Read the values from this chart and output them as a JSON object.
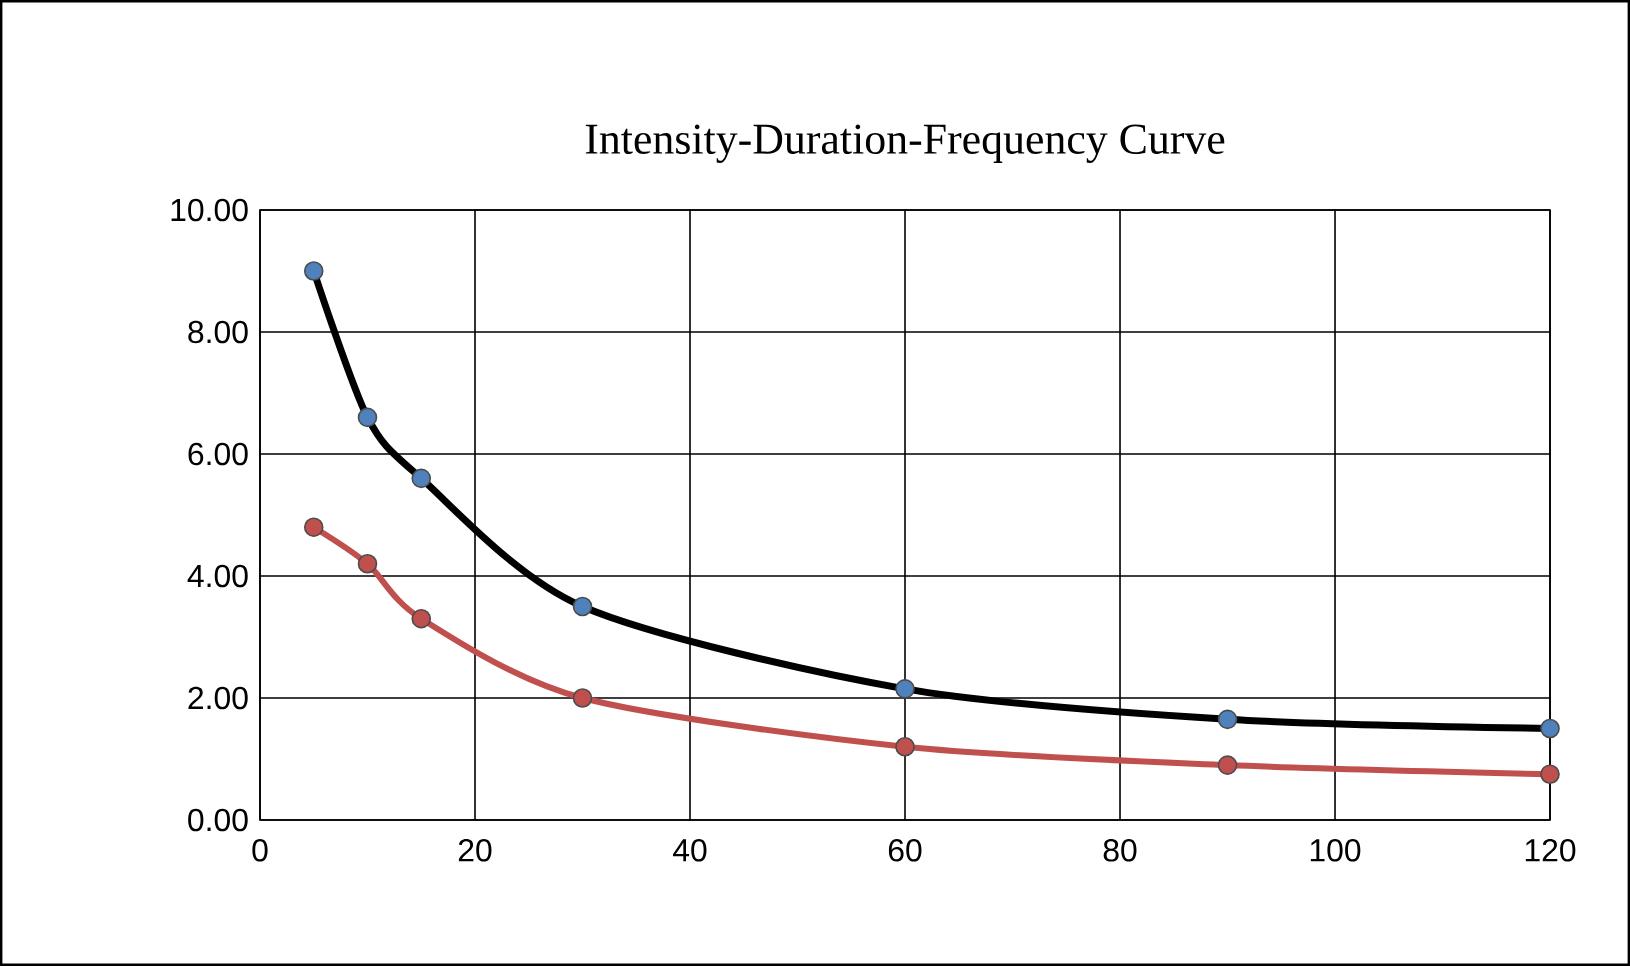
{
  "chart_data": {
    "type": "line",
    "title": "Intensity-Duration-Frequency Curve",
    "x": [
      5,
      10,
      15,
      30,
      60,
      90,
      120
    ],
    "series": [
      {
        "color": "#000000",
        "values": [
          9.0,
          6.6,
          5.6,
          3.5,
          2.15,
          1.65,
          1.5
        ]
      },
      {
        "color": "#c0504d",
        "values": [
          4.8,
          4.2,
          3.3,
          2.0,
          1.2,
          0.9,
          0.75
        ]
      }
    ],
    "xlim": [
      0,
      120
    ],
    "xticks": [
      0,
      20,
      40,
      60,
      80,
      100,
      120
    ],
    "ylim": [
      0,
      10
    ],
    "yticks": [
      {
        "value": 0,
        "label": "0.00"
      },
      {
        "value": 2,
        "label": "2.00"
      },
      {
        "value": 4,
        "label": "4.00"
      },
      {
        "value": 6,
        "label": "6.00"
      },
      {
        "value": 8,
        "label": "8.00"
      },
      {
        "value": 10,
        "label": "10.00"
      }
    ],
    "grid": true,
    "marker": "circle",
    "line_style": "solid"
  }
}
